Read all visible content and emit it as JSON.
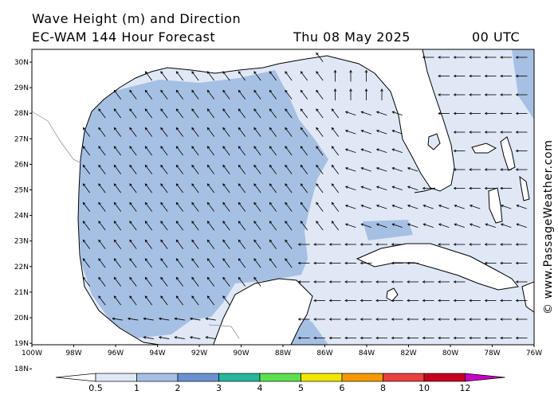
{
  "header": {
    "title": "Wave Height (m) and Direction",
    "model": "EC-WAM 144 Hour Forecast",
    "date": "Thu 08 May 2025",
    "time": "00 UTC"
  },
  "credit": "© www.PassageWeather.com",
  "axes": {
    "lat_labels": [
      "30N",
      "29N",
      "28N",
      "27N",
      "26N",
      "25N",
      "24N",
      "23N",
      "22N",
      "21N",
      "20N",
      "19N",
      "18N"
    ],
    "lon_labels": [
      "100W",
      "98W",
      "96W",
      "94W",
      "92W",
      "90W",
      "88W",
      "86W",
      "84W",
      "82W",
      "80W",
      "78W",
      "76W"
    ]
  },
  "colorbar": {
    "labels": [
      "0.5",
      "1",
      "2",
      "3",
      "4",
      "5",
      "6",
      "8",
      "10",
      "12"
    ],
    "colors": [
      "#ffffff",
      "#e0e8f6",
      "#a6c0e4",
      "#6a92d2",
      "#25b89c",
      "#5ae050",
      "#f2e600",
      "#f59a00",
      "#ea4040",
      "#c4001c",
      "#c800c8"
    ]
  },
  "map_colors": {
    "land": "#ffffff",
    "wave_low": "#e0e8f6",
    "wave_mid": "#a6c0e4",
    "coast": "#000000"
  }
}
